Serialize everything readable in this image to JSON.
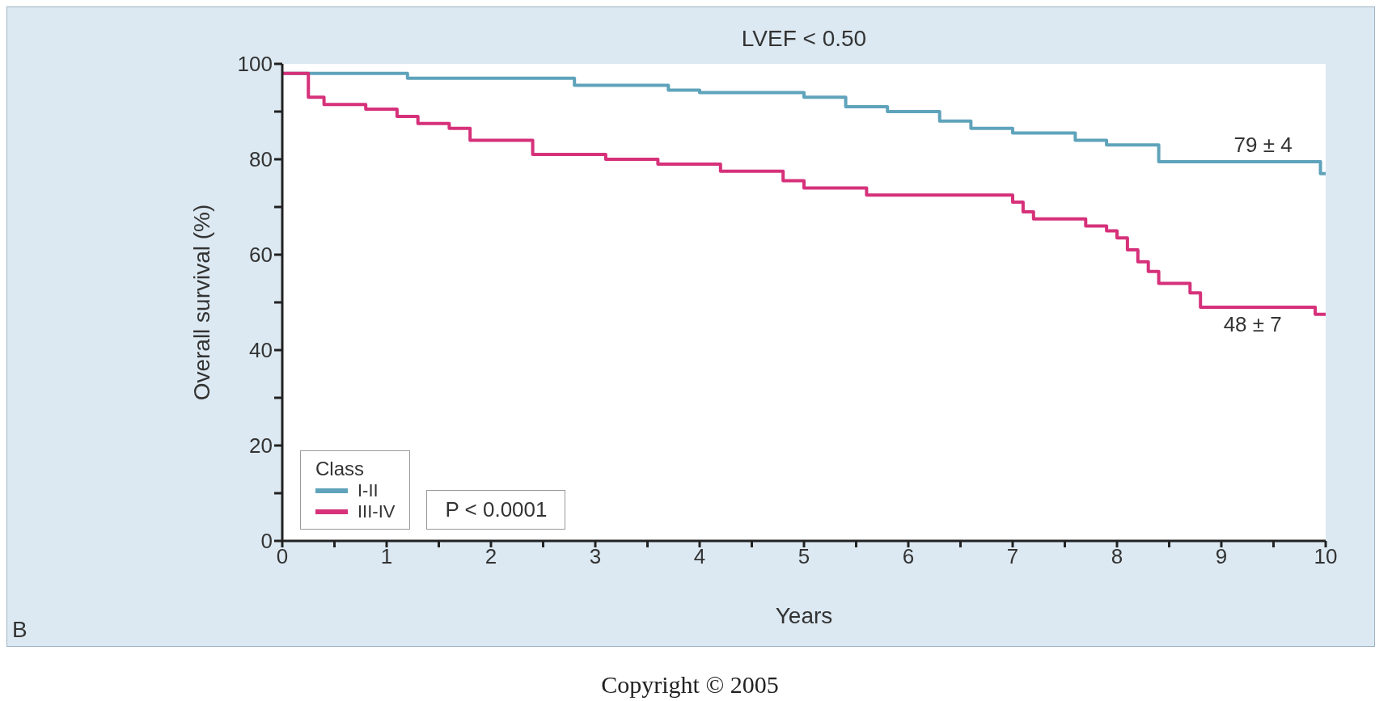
{
  "chart_data": {
    "type": "step",
    "title": "LVEF < 0.50",
    "xlabel": "Years",
    "ylabel": "Overall survival (%)",
    "legend_title": "Class",
    "legend": "bottom left",
    "grid": false,
    "marker": "none",
    "line_style": "solid",
    "xlim": [
      0,
      10
    ],
    "xticks": [
      0,
      {
        "value": 0.5,
        "label": null
      },
      1,
      {
        "value": 1.5,
        "label": null
      },
      2,
      {
        "value": 2.5,
        "label": null
      },
      3,
      {
        "value": 3.5,
        "label": null
      },
      4,
      {
        "value": 4.5,
        "label": null
      },
      5,
      {
        "value": 5.5,
        "label": null
      },
      6,
      {
        "value": 6.5,
        "label": null
      },
      7,
      {
        "value": 7.5,
        "label": null
      },
      8,
      {
        "value": 8.5,
        "label": null
      },
      9,
      {
        "value": 9.5,
        "label": null
      },
      10
    ],
    "ylim": [
      0,
      100
    ],
    "yticks": [
      0,
      {
        "value": 10,
        "label": null
      },
      20,
      {
        "value": 30,
        "label": null
      },
      40,
      {
        "value": 50,
        "label": null
      },
      60,
      {
        "value": 70,
        "label": null
      },
      80,
      {
        "value": 90,
        "label": null
      },
      100
    ],
    "series": [
      {
        "name": "I-II",
        "color": "#5fa3bb",
        "x": [
          0,
          1.2,
          2.8,
          3.7,
          4.0,
          5.0,
          5.4,
          5.8,
          6.3,
          6.6,
          7.0,
          7.6,
          7.9,
          8.4,
          9.95,
          10
        ],
        "values": [
          98,
          97,
          95.5,
          94.5,
          94,
          93,
          91,
          90,
          88,
          86.5,
          85.5,
          84,
          83,
          79.5,
          77,
          77
        ]
      },
      {
        "name": "III-IV",
        "color": "#d6317a",
        "x": [
          0,
          0.25,
          0.4,
          0.8,
          1.1,
          1.3,
          1.6,
          1.8,
          2.4,
          3.1,
          3.6,
          4.2,
          4.8,
          5.0,
          5.6,
          7.0,
          7.1,
          7.2,
          7.7,
          7.9,
          8.0,
          8.1,
          8.2,
          8.3,
          8.4,
          8.7,
          8.8,
          9.9,
          10
        ],
        "values": [
          98,
          93,
          91.5,
          90.5,
          89,
          87.5,
          86.5,
          84,
          81,
          80,
          79,
          77.5,
          75.5,
          74,
          72.5,
          71,
          69,
          67.5,
          66,
          65,
          63.5,
          61,
          58.5,
          56.5,
          54,
          52,
          49,
          47.5,
          47.5
        ]
      }
    ],
    "annotations": [
      {
        "text": "79 ± 4",
        "x": 9.4,
        "y": 79.5
      },
      {
        "text": "48 ± 7",
        "x": 9.3,
        "y": 49
      },
      "P < 0.0001",
      "B",
      "Copyright © 2005"
    ]
  }
}
